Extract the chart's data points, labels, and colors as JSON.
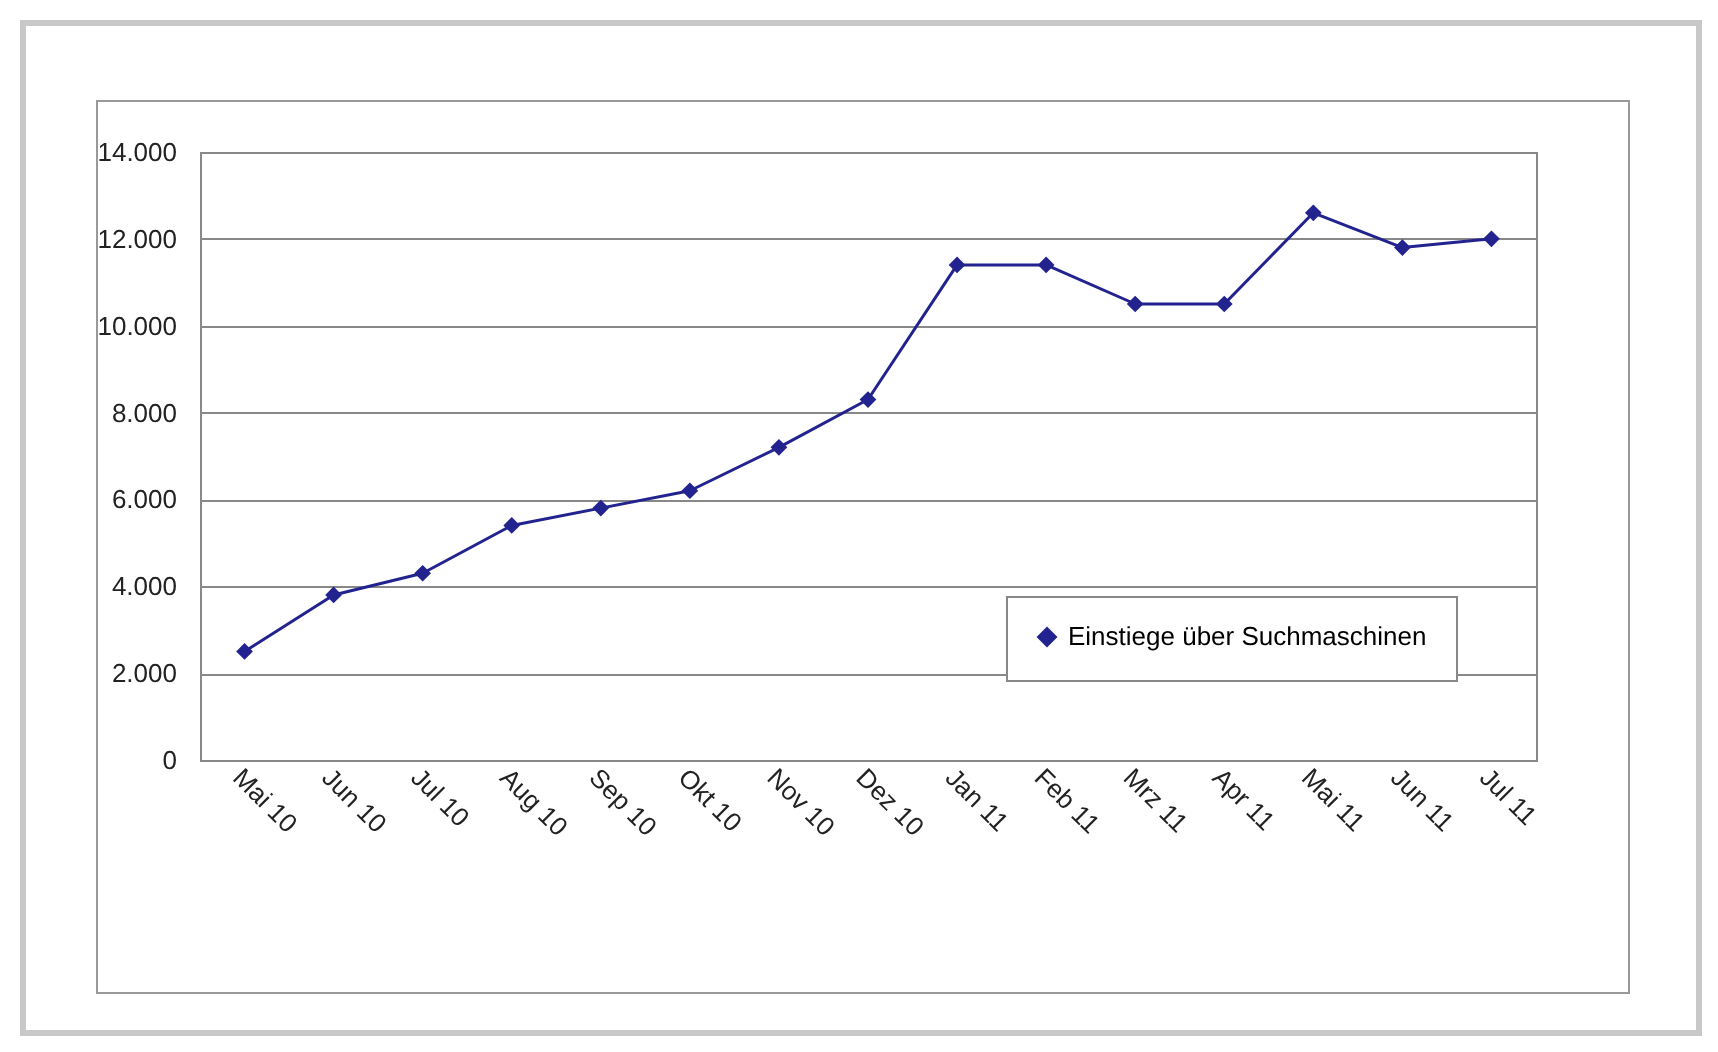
{
  "chart_data": {
    "type": "line",
    "categories": [
      "Mai 10",
      "Jun 10",
      "Jul 10",
      "Aug 10",
      "Sep 10",
      "Okt 10",
      "Nov 10",
      "Dez 10",
      "Jan 11",
      "Feb 11",
      "Mrz 11",
      "Apr 11",
      "Mai 11",
      "Jun 11",
      "Jul 11"
    ],
    "series": [
      {
        "name": "Einstiege über Suchmaschinen",
        "color": "#232390",
        "values": [
          2500,
          3800,
          4300,
          5400,
          5800,
          6200,
          7200,
          8300,
          11400,
          11400,
          10500,
          10500,
          12600,
          11800,
          12000
        ]
      }
    ],
    "ylim": [
      0,
      14000
    ],
    "yticks": [
      {
        "value": 0,
        "label": "0"
      },
      {
        "value": 2000,
        "label": "2.000"
      },
      {
        "value": 4000,
        "label": "4.000"
      },
      {
        "value": 6000,
        "label": "6.000"
      },
      {
        "value": 8000,
        "label": "8.000"
      },
      {
        "value": 10000,
        "label": "10.000"
      },
      {
        "value": 12000,
        "label": "12.000"
      },
      {
        "value": 14000,
        "label": "14.000"
      }
    ],
    "grid": "y",
    "legend": "bottom right",
    "marker": "diamond",
    "line_style": "solid"
  }
}
